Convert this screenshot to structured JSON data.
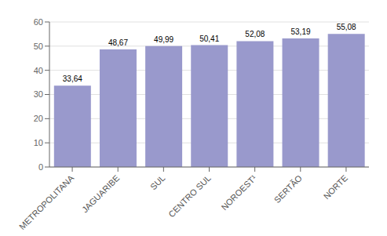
{
  "chart_data": {
    "type": "bar",
    "categories": [
      "METROPOLITANA",
      "JAGUARIBE",
      "SUL",
      "CENTRO SUL",
      "NOROEST¹",
      "SERTÃO",
      "NORTE"
    ],
    "values": [
      33.64,
      48.67,
      49.99,
      50.41,
      52.08,
      53.19,
      55.08
    ],
    "value_labels": [
      "33,64",
      "48,67",
      "49,99",
      "50,41",
      "52,08",
      "53,19",
      "55,08"
    ],
    "data_labels": true,
    "color": "#9999cc",
    "ylim": [
      0,
      60
    ],
    "yticks": [
      0,
      10,
      20,
      30,
      40,
      50,
      60
    ],
    "grid": true
  }
}
